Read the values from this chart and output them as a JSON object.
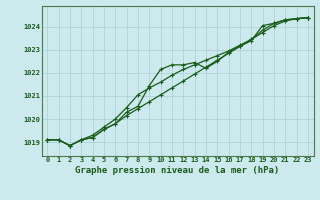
{
  "title": "Graphe pression niveau de la mer (hPa)",
  "bg_color": "#cce9ee",
  "grid_color": "#aacdd4",
  "line_color": "#1a5c1a",
  "spine_color": "#4a7a4a",
  "xlim": [
    -0.5,
    23.5
  ],
  "ylim": [
    1018.4,
    1024.9
  ],
  "yticks": [
    1019,
    1020,
    1021,
    1022,
    1023,
    1024
  ],
  "xticks": [
    0,
    1,
    2,
    3,
    4,
    5,
    6,
    7,
    8,
    9,
    10,
    11,
    12,
    13,
    14,
    15,
    16,
    17,
    18,
    19,
    20,
    21,
    22,
    23
  ],
  "series1": [
    1019.1,
    1019.1,
    1018.85,
    1019.1,
    1019.2,
    1019.55,
    1019.8,
    1020.15,
    1020.45,
    1020.75,
    1021.05,
    1021.35,
    1021.65,
    1021.95,
    1022.25,
    1022.55,
    1022.85,
    1023.15,
    1023.45,
    1023.75,
    1024.05,
    1024.25,
    1024.35,
    1024.4
  ],
  "series2": [
    1019.1,
    1019.1,
    1018.85,
    1019.1,
    1019.3,
    1019.65,
    1020.0,
    1020.5,
    1021.05,
    1021.35,
    1021.6,
    1021.9,
    1022.15,
    1022.35,
    1022.55,
    1022.75,
    1022.95,
    1023.2,
    1023.45,
    1023.85,
    1024.15,
    1024.3,
    1024.35,
    1024.4
  ],
  "series3": [
    1019.1,
    1019.1,
    1018.85,
    1019.1,
    1019.2,
    1019.55,
    1019.8,
    1020.3,
    1020.55,
    1021.45,
    1022.15,
    1022.35,
    1022.35,
    1022.45,
    1022.2,
    1022.5,
    1022.9,
    1023.15,
    1023.4,
    1024.05,
    1024.15,
    1024.3,
    1024.35,
    1024.4
  ],
  "figsize": [
    3.2,
    2.0
  ],
  "dpi": 100,
  "title_fontsize": 6.5,
  "tick_fontsize": 5.0,
  "linewidth": 0.9,
  "markersize": 3.5
}
